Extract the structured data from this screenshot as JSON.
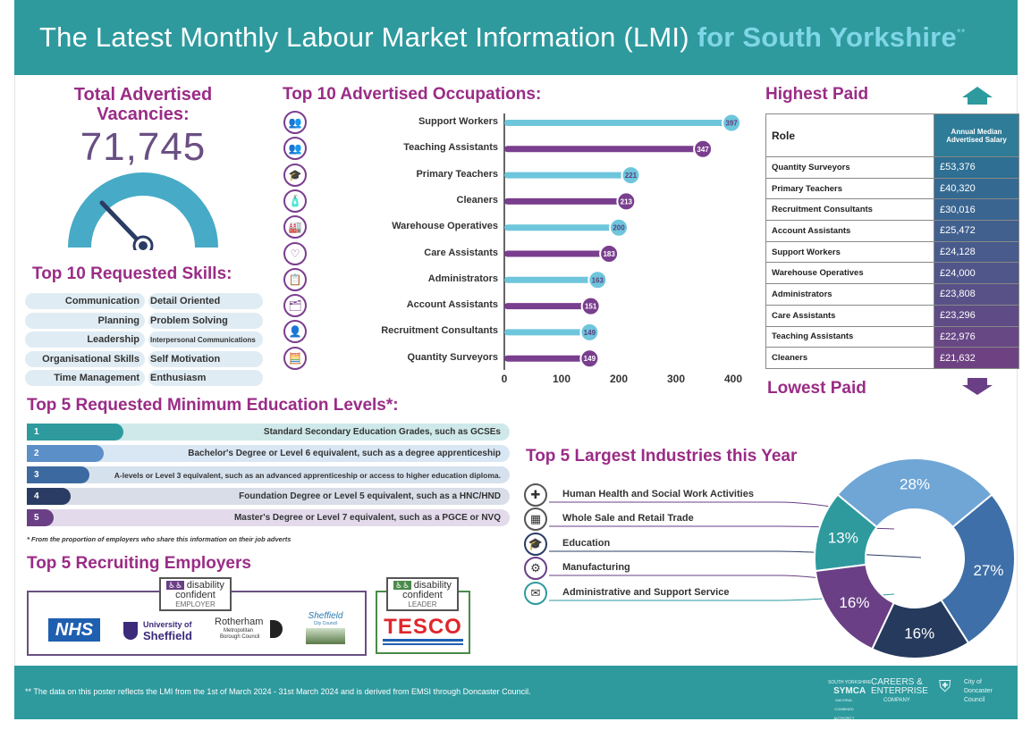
{
  "header": {
    "title_main": "The Latest Monthly Labour Market Information (LMI) ",
    "title_highlight": "for South Yorkshire",
    "title_mark": "**"
  },
  "vacancies": {
    "title": "Total Advertised Vacancies:",
    "value": "71,745"
  },
  "skills": {
    "title": "Top 10 Requested Skills:",
    "rows": [
      {
        "left": "Communication",
        "right": "Detail Oriented"
      },
      {
        "left": "Planning",
        "right": "Problem Solving"
      },
      {
        "left": "Leadership",
        "right": "Interpersonal Communications"
      },
      {
        "left": "Organisational Skills",
        "right": "Self Motivation"
      },
      {
        "left": "Time Management",
        "right": "Enthusiasm"
      }
    ]
  },
  "occupations": {
    "title": "Top 10 Advertised Occupations:",
    "colors": {
      "teal": "#6ec6dc",
      "purple": "#7a3e8e"
    }
  },
  "chart_data": {
    "type": "bar",
    "orientation": "horizontal",
    "categories": [
      "Support Workers",
      "Teaching Assistants",
      "Primary Teachers",
      "Cleaners",
      "Warehouse Operatives",
      "Care Assistants",
      "Administrators",
      "Account Assistants",
      "Recruitment Consultants",
      "Quantity Surveyors"
    ],
    "values": [
      397,
      347,
      221,
      213,
      200,
      183,
      163,
      151,
      149,
      149
    ],
    "value_labels": [
      "397",
      "347",
      "221",
      "213",
      "200",
      "183",
      "163",
      "151",
      "149",
      "149"
    ],
    "title": "Top 10 Advertised Occupations:",
    "xlabel": "",
    "ylabel": "",
    "xlim": [
      0,
      400
    ],
    "ticks": [
      "0",
      "100",
      "200",
      "300",
      "400"
    ],
    "grid": false,
    "bar_colors": [
      "#6ec6dc",
      "#7a3e8e",
      "#6ec6dc",
      "#7a3e8e",
      "#6ec6dc",
      "#7a3e8e",
      "#6ec6dc",
      "#7a3e8e",
      "#6ec6dc",
      "#7a3e8e"
    ]
  },
  "highest_paid": {
    "title_top": "Highest Paid",
    "title_bottom": "Lowest Paid",
    "col_role": "Role",
    "col_salary": "Annual Median Advertised Salary",
    "rows": [
      {
        "role": "Quantity Surveyors",
        "salary": "£53,376"
      },
      {
        "role": "Primary Teachers",
        "salary": "£40,320"
      },
      {
        "role": "Recruitment Consultants",
        "salary": "£30,016"
      },
      {
        "role": "Account Assistants",
        "salary": "£25,472"
      },
      {
        "role": "Support Workers",
        "salary": "£24,128"
      },
      {
        "role": "Warehouse Operatives",
        "salary": "£24,000"
      },
      {
        "role": "Administrators",
        "salary": "£23,808"
      },
      {
        "role": "Care Assistants",
        "salary": "£23,296"
      },
      {
        "role": "Teaching Assistants",
        "salary": "£22,976"
      },
      {
        "role": "Cleaners",
        "salary": "£21,632"
      }
    ],
    "salary_colors": [
      "#2e6f93",
      "#346a92",
      "#3a6590",
      "#41608e",
      "#485b8c",
      "#50568a",
      "#585188",
      "#5f4c86",
      "#674784",
      "#6e4282"
    ]
  },
  "education": {
    "title": "Top 5 Requested Minimum Education Levels*:",
    "rows": [
      {
        "num": "1",
        "text": "Standard Secondary Education Grades, such as GCSEs",
        "fill": 0.2,
        "bar": "#2e9a9e",
        "bg": "#cfe9ea"
      },
      {
        "num": "2",
        "text": "Bachelor's Degree or Level 6 equivalent, such as a degree apprenticeship",
        "fill": 0.16,
        "bar": "#5b8fc7",
        "bg": "#d9e6f3"
      },
      {
        "num": "3",
        "text": "A-levels or Level 3 equivalent, such as an advanced apprenticeship or access to higher education diploma.",
        "fill": 0.13,
        "bar": "#3c6aa0",
        "bg": "#d6e1ee"
      },
      {
        "num": "4",
        "text": "Foundation Degree or Level 5 equivalent, such as a HNC/HND",
        "fill": 0.09,
        "bar": "#2a3c63",
        "bg": "#d8dde8"
      },
      {
        "num": "5",
        "text": "Master's Degree or Level 7 equivalent, such as a PGCE or NVQ",
        "fill": 0.055,
        "bar": "#6a3f86",
        "bg": "#e3dbec"
      }
    ],
    "footnote": "* From the proportion of employers who share this information on their job adverts"
  },
  "employers": {
    "title": "Top 5 Recruiting Employers",
    "badge1": {
      "line1": "disability",
      "line2": "confident",
      "line3": "EMPLOYER"
    },
    "badge2": {
      "line1": "disability",
      "line2": "confident",
      "line3": "LEADER"
    },
    "nhs": "NHS",
    "sheffield_uni_1": "University of",
    "sheffield_uni_2": "Sheffield",
    "rotherham_1": "Rotherham",
    "rotherham_2": "Metropolitan",
    "rotherham_3": "Borough Council",
    "sheffield_cc_1": "Sheffield",
    "sheffield_cc_2": "City Council",
    "tesco": "TESCO"
  },
  "industries": {
    "title": "Top 5 Largest Industries this Year",
    "items": [
      {
        "label": "Human Health and Social Work Activities",
        "icon": "plus-icon"
      },
      {
        "label": "Whole Sale and Retail Trade",
        "icon": "shop-icon"
      },
      {
        "label": "Education",
        "icon": "graduation-cap-icon"
      },
      {
        "label": "Manufacturing",
        "icon": "factory-icon"
      },
      {
        "label": "Administrative and Support Service",
        "icon": "envelope-icon"
      }
    ]
  },
  "industry_chart": {
    "type": "pie",
    "donut": true,
    "slices": [
      {
        "label": "28%",
        "value": 28,
        "color": "#6fa6d6"
      },
      {
        "label": "27%",
        "value": 27,
        "color": "#3e6fa8"
      },
      {
        "label": "16%",
        "value": 16,
        "color": "#253a5c"
      },
      {
        "label": "16%",
        "value": 16,
        "color": "#6a3f86"
      },
      {
        "label": "13%",
        "value": 13,
        "color": "#2e9a9e"
      }
    ]
  },
  "footer": {
    "note": "**  The data on this poster reflects the LMI from the 1st of March 2024 - 31st March 2024 and is derived from EMSI through Doncaster Council.",
    "logo1_a": "SOUTH YORKSHIRE",
    "logo1_b": "SYMCA",
    "logo1_c": "MAYORAL COMBINED AUTHORITY",
    "logo2_a": "CAREERS &",
    "logo2_b": "ENTERPRISE",
    "logo2_c": "COMPANY",
    "logo3_a": "City of",
    "logo3_b": "Doncaster",
    "logo3_c": "Council"
  }
}
